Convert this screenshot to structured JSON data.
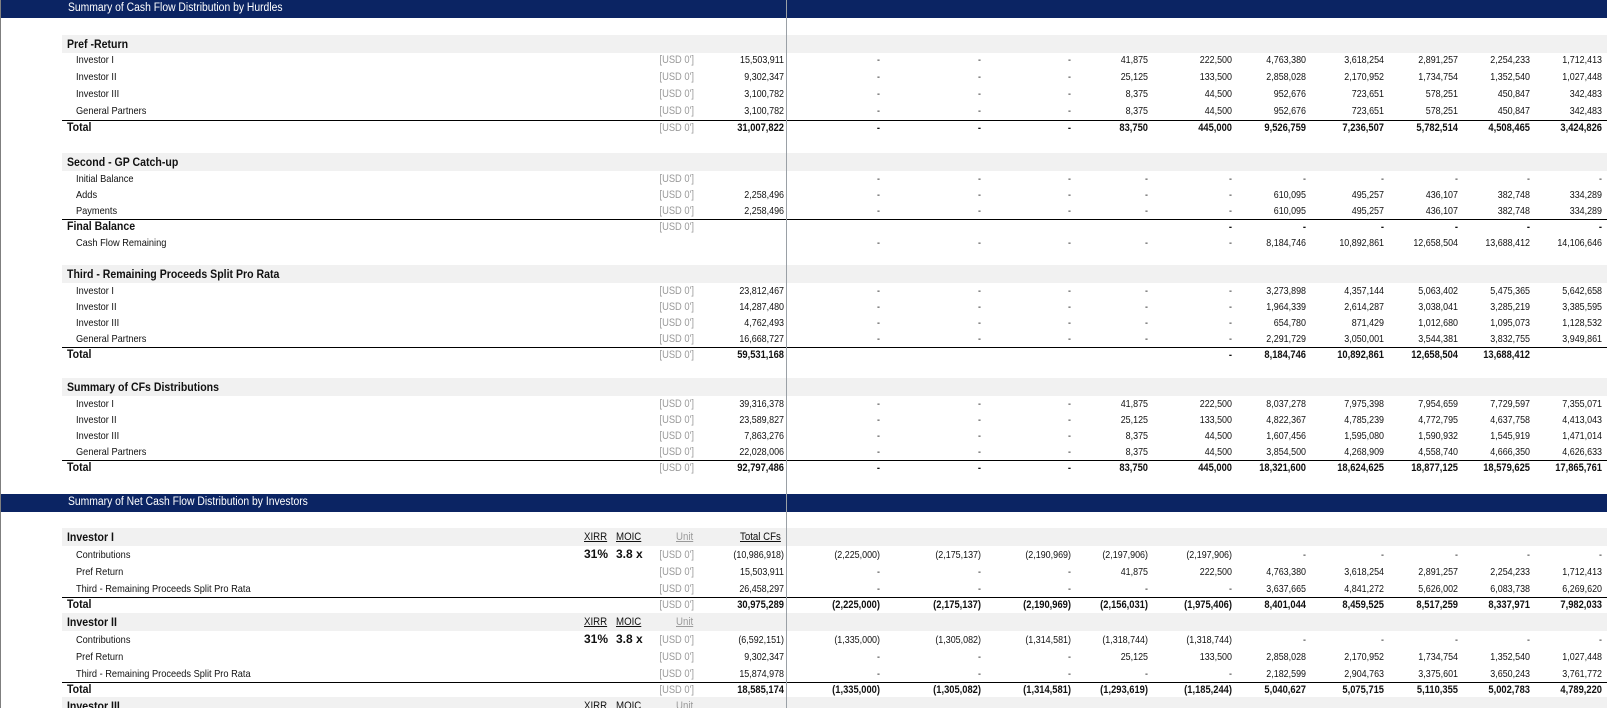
{
  "banners": {
    "hurdles": "Summary of Cash Flow Distribution by Hurdles",
    "investors": "Summary of Net Cash Flow Distribution by Investors"
  },
  "unit": "[USD 0']",
  "sections": [
    {
      "key": "pref",
      "title": "Pref -Return",
      "rows": [
        {
          "label": "Investor I",
          "unit": "[USD 0']",
          "total": "15,503,911",
          "vals": [
            "-",
            "-",
            "-",
            "41,875",
            "222,500",
            "4,763,380",
            "3,618,254",
            "2,891,257",
            "2,254,233",
            "1,712,413"
          ]
        },
        {
          "label": "Investor II",
          "unit": "[USD 0']",
          "total": "9,302,347",
          "vals": [
            "-",
            "-",
            "-",
            "25,125",
            "133,500",
            "2,858,028",
            "2,170,952",
            "1,734,754",
            "1,352,540",
            "1,027,448"
          ]
        },
        {
          "label": "Investor III",
          "unit": "[USD 0']",
          "total": "3,100,782",
          "vals": [
            "-",
            "-",
            "-",
            "8,375",
            "44,500",
            "952,676",
            "723,651",
            "578,251",
            "450,847",
            "342,483"
          ]
        },
        {
          "label": "General Partners",
          "unit": "[USD 0']",
          "total": "3,100,782",
          "vals": [
            "-",
            "-",
            "-",
            "8,375",
            "44,500",
            "952,676",
            "723,651",
            "578,251",
            "450,847",
            "342,483"
          ]
        },
        {
          "label": "Total",
          "bold": true,
          "unit": "[USD 0']",
          "total": "31,007,822",
          "vals": [
            "-",
            "-",
            "-",
            "83,750",
            "445,000",
            "9,526,759",
            "7,236,507",
            "5,782,514",
            "4,508,465",
            "3,424,826"
          ]
        }
      ]
    },
    {
      "key": "catchup",
      "title": "Second - GP Catch-up",
      "rows": [
        {
          "label": "Initial Balance",
          "unit": "[USD 0']",
          "total": "",
          "vals": [
            "-",
            "-",
            "-",
            "-",
            "-",
            "-",
            "-",
            "-",
            "-",
            "-"
          ]
        },
        {
          "label": "Adds",
          "unit": "[USD 0']",
          "total": "2,258,496",
          "vals": [
            "-",
            "-",
            "-",
            "-",
            "-",
            "610,095",
            "495,257",
            "436,107",
            "382,748",
            "334,289"
          ]
        },
        {
          "label": "Payments",
          "unit": "[USD 0']",
          "total": "2,258,496",
          "vals": [
            "-",
            "-",
            "-",
            "-",
            "-",
            "610,095",
            "495,257",
            "436,107",
            "382,748",
            "334,289"
          ]
        },
        {
          "label": "Final Balance",
          "bold": true,
          "unit": "[USD 0']",
          "total": "",
          "vals": [
            "",
            "",
            "",
            "",
            "-",
            "-",
            "-",
            "-",
            "-",
            "-"
          ]
        },
        {
          "label": "Cash Flow Remaining",
          "unit": "",
          "total": "",
          "vals": [
            "-",
            "-",
            "-",
            "-",
            "-",
            "8,184,746",
            "10,892,861",
            "12,658,504",
            "13,688,412",
            "14,106,646"
          ]
        }
      ]
    },
    {
      "key": "third",
      "title": "Third - Remaining Proceeds Split Pro Rata",
      "rows": [
        {
          "label": "Investor I",
          "unit": "[USD 0']",
          "total": "23,812,467",
          "vals": [
            "-",
            "-",
            "-",
            "-",
            "-",
            "3,273,898",
            "4,357,144",
            "5,063,402",
            "5,475,365",
            "5,642,658"
          ]
        },
        {
          "label": "Investor II",
          "unit": "[USD 0']",
          "total": "14,287,480",
          "vals": [
            "-",
            "-",
            "-",
            "-",
            "-",
            "1,964,339",
            "2,614,287",
            "3,038,041",
            "3,285,219",
            "3,385,595"
          ]
        },
        {
          "label": "Investor III",
          "unit": "[USD 0']",
          "total": "4,762,493",
          "vals": [
            "-",
            "-",
            "-",
            "-",
            "-",
            "654,780",
            "871,429",
            "1,012,680",
            "1,095,073",
            "1,128,532"
          ]
        },
        {
          "label": "General Partners",
          "unit": "[USD 0']",
          "total": "16,668,727",
          "vals": [
            "-",
            "-",
            "-",
            "-",
            "-",
            "2,291,729",
            "3,050,001",
            "3,544,381",
            "3,832,755",
            "3,949,861"
          ]
        },
        {
          "label": "Total",
          "bold": true,
          "unit": "[USD 0']",
          "total": "59,531,168",
          "vals": [
            "",
            "",
            "",
            "",
            "-",
            "8,184,746",
            "10,892,861",
            "12,658,504",
            "13,688,412",
            ""
          ]
        }
      ]
    },
    {
      "key": "summary",
      "title": "Summary of CFs Distributions",
      "rows": [
        {
          "label": "Investor I",
          "unit": "[USD 0']",
          "total": "39,316,378",
          "vals": [
            "-",
            "-",
            "-",
            "41,875",
            "222,500",
            "8,037,278",
            "7,975,398",
            "7,954,659",
            "7,729,597",
            "7,355,071"
          ]
        },
        {
          "label": "Investor II",
          "unit": "[USD 0']",
          "total": "23,589,827",
          "vals": [
            "-",
            "-",
            "-",
            "25,125",
            "133,500",
            "4,822,367",
            "4,785,239",
            "4,772,795",
            "4,637,758",
            "4,413,043"
          ]
        },
        {
          "label": "Investor III",
          "unit": "[USD 0']",
          "total": "7,863,276",
          "vals": [
            "-",
            "-",
            "-",
            "8,375",
            "44,500",
            "1,607,456",
            "1,595,080",
            "1,590,932",
            "1,545,919",
            "1,471,014"
          ]
        },
        {
          "label": "General Partners",
          "unit": "[USD 0']",
          "total": "22,028,006",
          "vals": [
            "-",
            "-",
            "-",
            "8,375",
            "44,500",
            "3,854,500",
            "4,268,909",
            "4,558,740",
            "4,666,350",
            "4,626,633"
          ]
        },
        {
          "label": "Total",
          "bold": true,
          "unit": "[USD 0']",
          "total": "92,797,486",
          "vals": [
            "-",
            "-",
            "-",
            "83,750",
            "445,000",
            "18,321,600",
            "18,624,625",
            "18,877,125",
            "18,579,625",
            "17,865,761"
          ]
        }
      ]
    }
  ],
  "investors": [
    {
      "title": "Investor I",
      "xirr_label": "XIRR",
      "moic_label": "MOIC",
      "unit_label": "Unit",
      "total_label": "Total CFs",
      "xirr": "31%",
      "moic": "3.8 x",
      "rows": [
        {
          "label": "Contributions",
          "unit": "[USD 0']",
          "total": "(10,986,918)",
          "vals": [
            "(2,225,000)",
            "(2,175,137)",
            "(2,190,969)",
            "(2,197,906)",
            "(2,197,906)",
            "-",
            "-",
            "-",
            "-",
            "-"
          ]
        },
        {
          "label": "Pref Return",
          "unit": "[USD 0']",
          "total": "15,503,911",
          "vals": [
            "-",
            "-",
            "-",
            "41,875",
            "222,500",
            "4,763,380",
            "3,618,254",
            "2,891,257",
            "2,254,233",
            "1,712,413"
          ]
        },
        {
          "label": "Third - Remaining Proceeds Split Pro Rata",
          "unit": "[USD 0']",
          "total": "26,458,297",
          "vals": [
            "-",
            "-",
            "-",
            "-",
            "-",
            "3,637,665",
            "4,841,272",
            "5,626,002",
            "6,083,738",
            "6,269,620"
          ]
        },
        {
          "label": "Total",
          "bold": true,
          "unit": "[USD 0']",
          "total": "30,975,289",
          "vals": [
            "(2,225,000)",
            "(2,175,137)",
            "(2,190,969)",
            "(2,156,031)",
            "(1,975,406)",
            "8,401,044",
            "8,459,525",
            "8,517,259",
            "8,337,971",
            "7,982,033"
          ]
        }
      ]
    },
    {
      "title": "Investor II",
      "xirr_label": "XIRR",
      "moic_label": "MOIC",
      "unit_label": "Unit",
      "total_label": "",
      "xirr": "31%",
      "moic": "3.8 x",
      "rows": [
        {
          "label": "Contributions",
          "unit": "[USD 0']",
          "total": "(6,592,151)",
          "vals": [
            "(1,335,000)",
            "(1,305,082)",
            "(1,314,581)",
            "(1,318,744)",
            "(1,318,744)",
            "-",
            "-",
            "-",
            "-",
            "-"
          ]
        },
        {
          "label": "Pref Return",
          "unit": "[USD 0']",
          "total": "9,302,347",
          "vals": [
            "-",
            "-",
            "-",
            "25,125",
            "133,500",
            "2,858,028",
            "2,170,952",
            "1,734,754",
            "1,352,540",
            "1,027,448"
          ]
        },
        {
          "label": "Third - Remaining Proceeds Split Pro Rata",
          "unit": "[USD 0']",
          "total": "15,874,978",
          "vals": [
            "-",
            "-",
            "-",
            "-",
            "-",
            "2,182,599",
            "2,904,763",
            "3,375,601",
            "3,650,243",
            "3,761,772"
          ]
        },
        {
          "label": "Total",
          "bold": true,
          "unit": "[USD 0']",
          "total": "18,585,174",
          "vals": [
            "(1,335,000)",
            "(1,305,082)",
            "(1,314,581)",
            "(1,293,619)",
            "(1,185,244)",
            "5,040,627",
            "5,075,715",
            "5,110,355",
            "5,002,783",
            "4,789,220"
          ]
        }
      ]
    },
    {
      "title": "Investor III",
      "xirr_label": "XIRR",
      "moic_label": "MOIC",
      "unit_label": "Unit",
      "total_label": "",
      "xirr": "",
      "moic": "",
      "rows": []
    }
  ]
}
